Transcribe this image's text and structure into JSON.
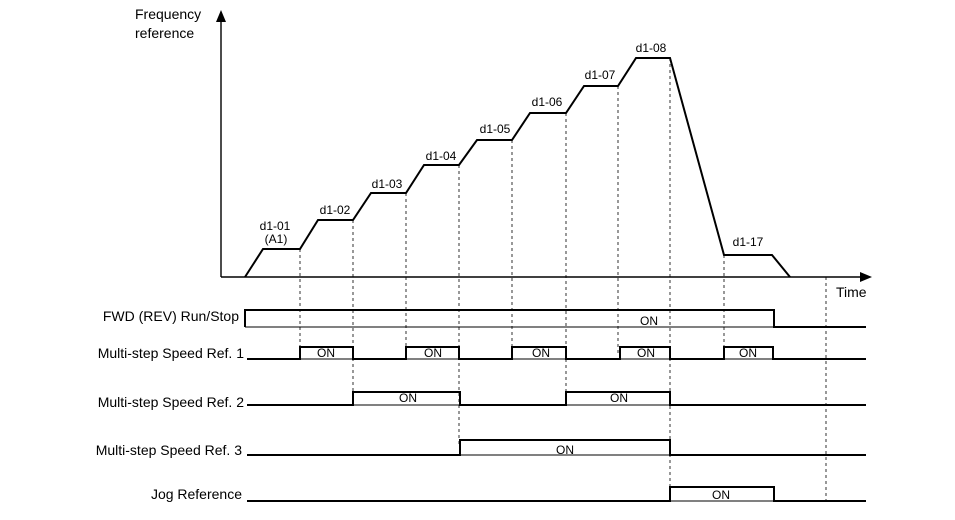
{
  "frequency_axis_label": [
    "Frequency",
    "reference"
  ],
  "time_axis_label": "Time",
  "step_labels": [
    "d1-01",
    "(A1)",
    "d1-02",
    "d1-03",
    "d1-04",
    "d1-05",
    "d1-06",
    "d1-07",
    "d1-08",
    "d1-17"
  ],
  "on_label": "ON",
  "signals": [
    {
      "label": "FWD (REV) Run/Stop"
    },
    {
      "label": "Multi-step Speed Ref. 1"
    },
    {
      "label": "Multi-step Speed Ref. 2"
    },
    {
      "label": "Multi-step Speed Ref. 3"
    },
    {
      "label": "Jog Reference"
    }
  ]
}
